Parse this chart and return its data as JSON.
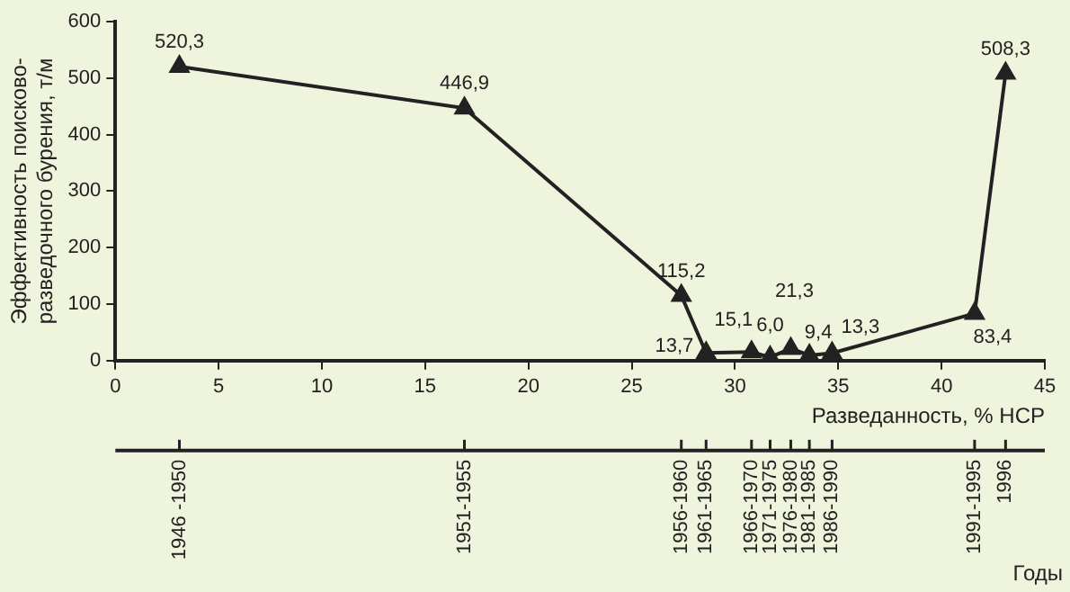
{
  "chart_data": {
    "type": "line",
    "ylabel": "Эффективность поисково-разведочного бурения, т/м",
    "xlabel": "Разведанность, % НСР",
    "x": [
      3.1,
      16.9,
      27.4,
      28.6,
      30.8,
      31.7,
      32.7,
      33.6,
      34.7,
      41.6,
      43.1
    ],
    "series": [
      {
        "color": "#222222",
        "values": [
          520.3,
          446.9,
          115.2,
          13.7,
          15.1,
          6.0,
          21.3,
          9.4,
          13.3,
          83.4,
          508.3
        ],
        "value_labels": [
          "520,3",
          "446,9",
          "115,2",
          "13,7",
          "15,1",
          "6,0",
          "21,3",
          "9,4",
          "13,3",
          "83,4",
          "508,3"
        ]
      }
    ],
    "xlim": [
      0,
      45
    ],
    "xticks": [
      0,
      5,
      10,
      15,
      20,
      25,
      30,
      35,
      40,
      45
    ],
    "ylim": [
      0,
      600
    ],
    "yticks": [
      0,
      100,
      200,
      300,
      400,
      500,
      600
    ],
    "annotations": [
      "1946 -1950",
      "1951-1955",
      "1956-1960",
      "1961-1965",
      "1966-1970",
      "1971-1975",
      "1976-1980",
      "1981-1985",
      "1986-1990",
      "1991-1995",
      "1996",
      "Годы"
    ],
    "marker": "triangle",
    "line_style": "solid",
    "grid": false,
    "legend": false
  }
}
